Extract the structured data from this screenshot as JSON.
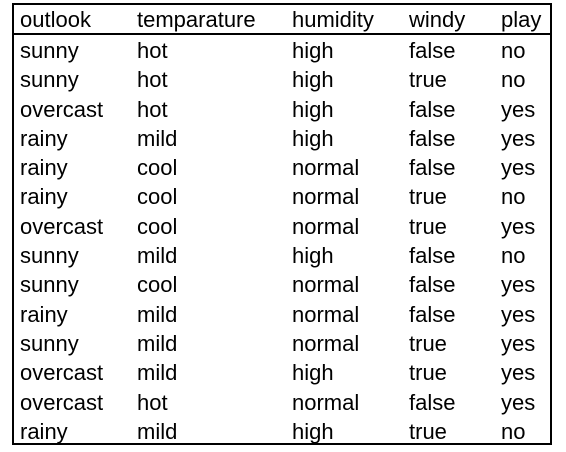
{
  "table": {
    "headers": {
      "outlook": "outlook",
      "temperature": "temparature",
      "humidity": "humidity",
      "windy": "windy",
      "play": "play"
    },
    "rows": [
      [
        "sunny",
        "hot",
        "high",
        "false",
        "no"
      ],
      [
        "sunny",
        "hot",
        "high",
        "true",
        "no"
      ],
      [
        "overcast",
        "hot",
        "high",
        "false",
        "yes"
      ],
      [
        "rainy",
        "mild",
        "high",
        "false",
        "yes"
      ],
      [
        "rainy",
        "cool",
        "normal",
        "false",
        "yes"
      ],
      [
        "rainy",
        "cool",
        "normal",
        "true",
        "no"
      ],
      [
        "overcast",
        "cool",
        "normal",
        "true",
        "yes"
      ],
      [
        "sunny",
        "mild",
        "high",
        "false",
        "no"
      ],
      [
        "sunny",
        "cool",
        "normal",
        "false",
        "yes"
      ],
      [
        "rainy",
        "mild",
        "normal",
        "false",
        "yes"
      ],
      [
        "sunny",
        "mild",
        "normal",
        "true",
        "yes"
      ],
      [
        "overcast",
        "mild",
        "high",
        "true",
        "yes"
      ],
      [
        "overcast",
        "hot",
        "normal",
        "false",
        "yes"
      ],
      [
        "rainy",
        "mild",
        "high",
        "true",
        "no"
      ]
    ]
  }
}
